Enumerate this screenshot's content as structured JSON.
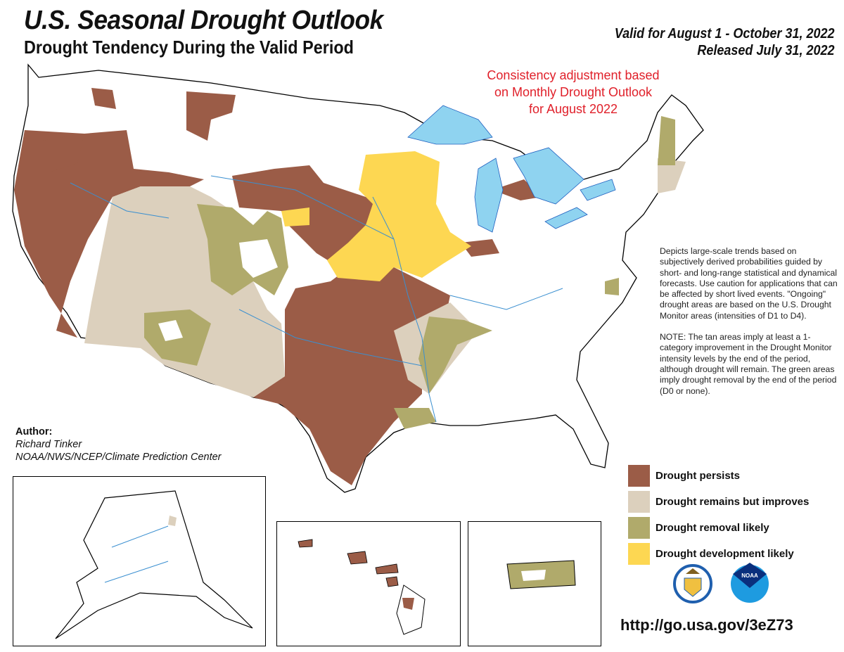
{
  "header": {
    "title": "U.S. Seasonal Drought Outlook",
    "subtitle": "Drought Tendency During the Valid Period",
    "valid_for": "Valid for August 1 - October 31, 2022",
    "released": "Released July 31, 2022"
  },
  "annotation": {
    "consistency_note": "Consistency adjustment based on Monthly Drought Outlook for August 2022"
  },
  "description": {
    "paragraph1": "Depicts large-scale trends based on subjectively derived probabilities guided by short- and long-range statistical and dynamical forecasts. Use caution for applications that can be affected by short lived events. \"Ongoing\" drought areas are based on the U.S. Drought Monitor areas (intensities of D1 to D4).",
    "paragraph2": "NOTE: The tan areas imply at least a 1-category improvement in the Drought Monitor intensity levels by the end of the period, although drought will remain. The green areas imply drought removal by the end of the period (D0 or none)."
  },
  "author": {
    "label": "Author:",
    "name": "Richard Tinker",
    "org": "NOAA/NWS/NCEP/Climate Prediction Center"
  },
  "legend": [
    {
      "label": "Drought persists",
      "color": "#9b5c47"
    },
    {
      "label": "Drought remains but improves",
      "color": "#dcd0bd"
    },
    {
      "label": "Drought removal likely",
      "color": "#b0aa6b"
    },
    {
      "label": "Drought development likely",
      "color": "#fdd752"
    }
  ],
  "colors": {
    "water": "#8fd3f0",
    "rivers": "#3a8fd0"
  },
  "logos": [
    "department-of-commerce-seal",
    "noaa-logo"
  ],
  "logo_text": {
    "noaa": "NOAA"
  },
  "url": "http://go.usa.gov/3eZ73"
}
